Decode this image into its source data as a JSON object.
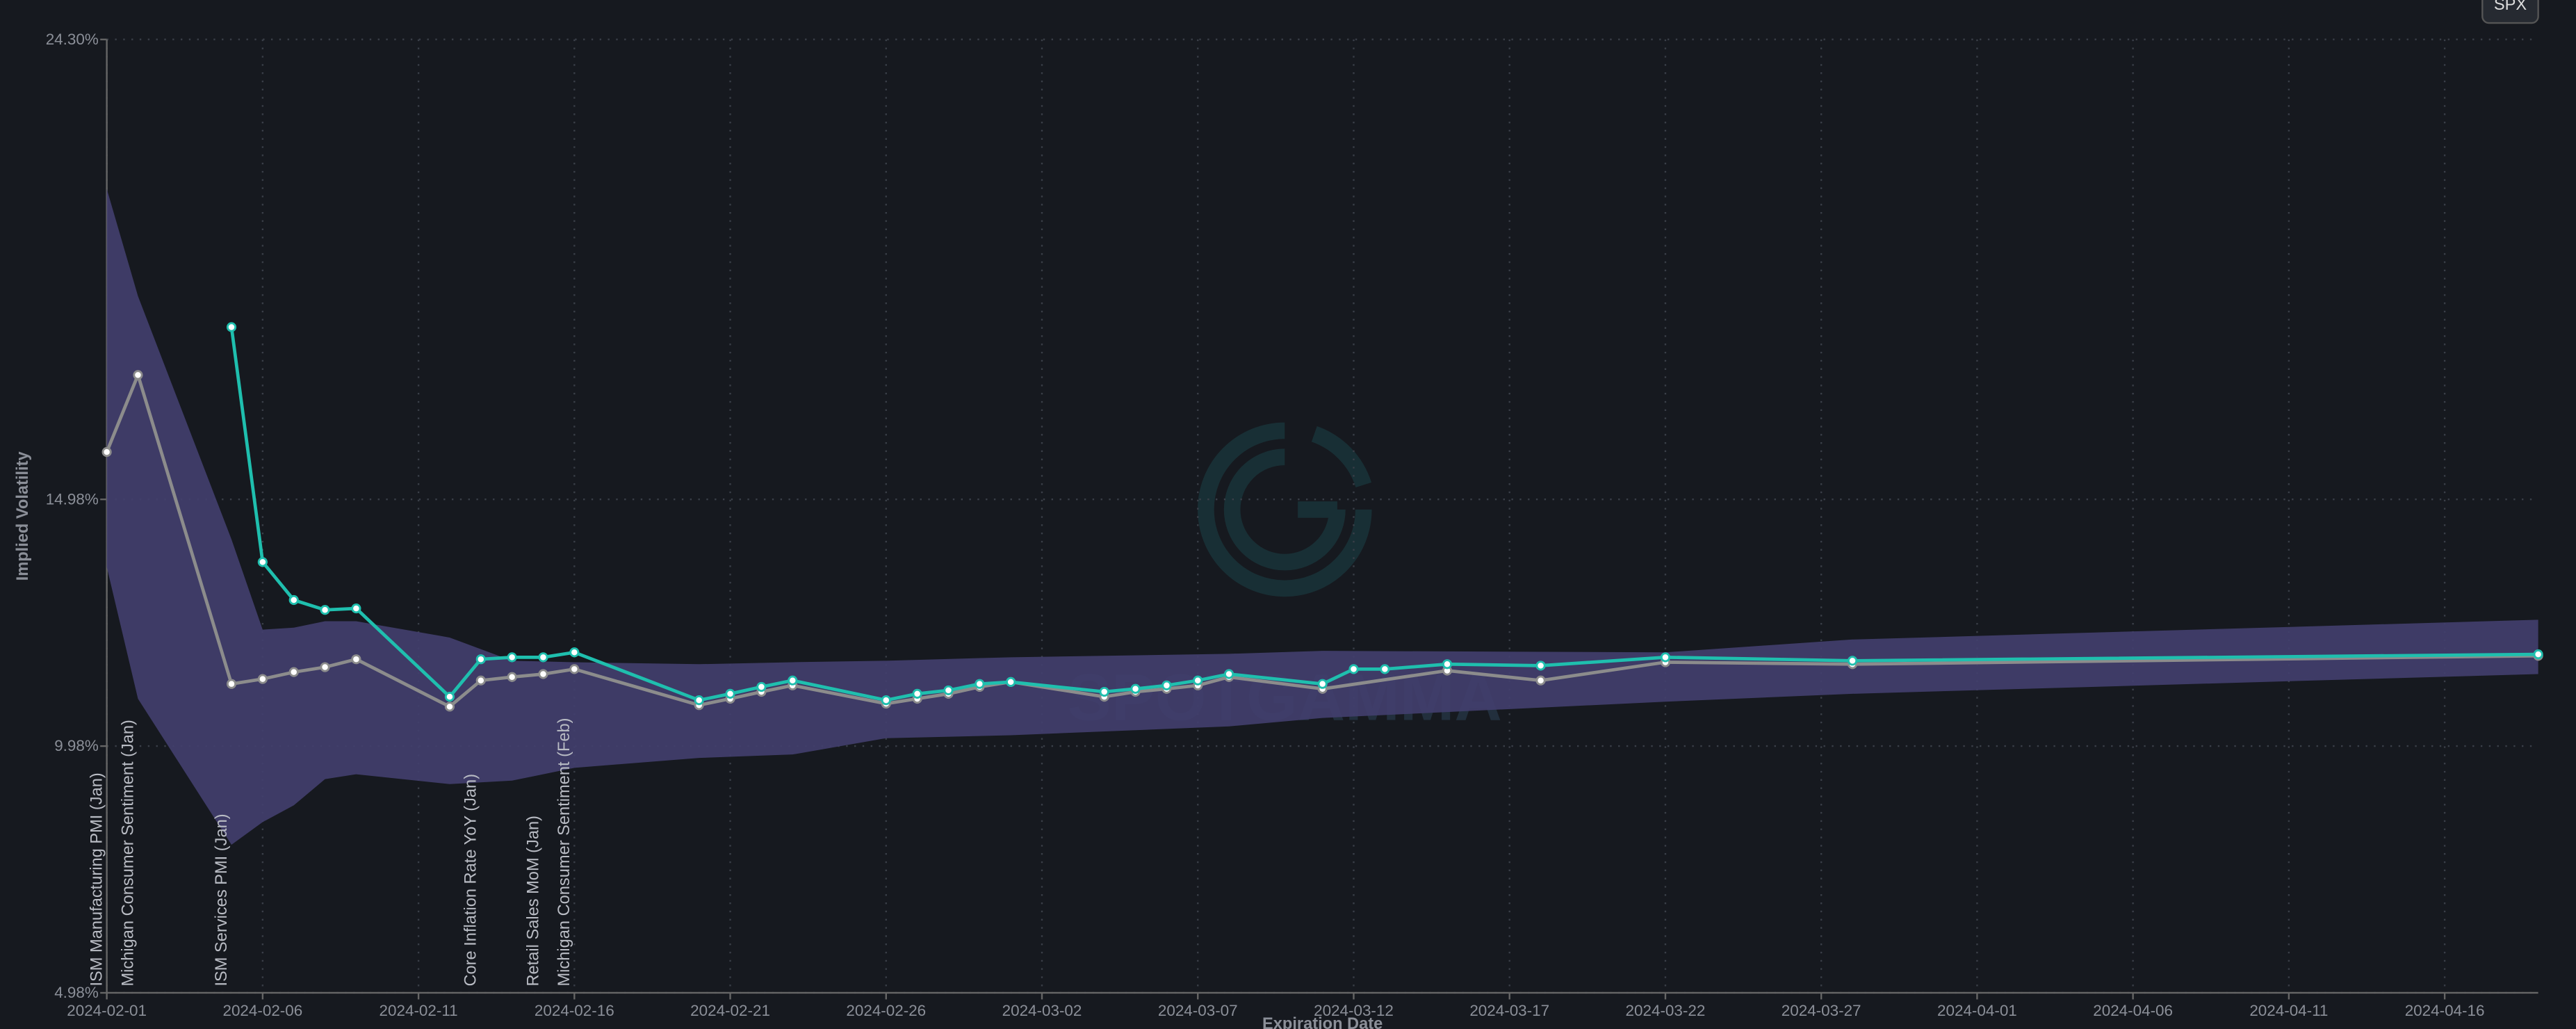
{
  "chart_data": {
    "type": "line",
    "y_label": "Implied Volatility",
    "x_label": "Expiration Date",
    "button": "SPX",
    "watermark": "SPOTGAMMA",
    "xlim": [
      "2024-02-01",
      "2024-04-19"
    ],
    "xticks": [
      "2024-02-01",
      "2024-02-06",
      "2024-02-11",
      "2024-02-16",
      "2024-02-21",
      "2024-02-26",
      "2024-03-02",
      "2024-03-07",
      "2024-03-12",
      "2024-03-17",
      "2024-03-22",
      "2024-03-27",
      "2024-04-01",
      "2024-04-06",
      "2024-04-11",
      "2024-04-16"
    ],
    "ylim": [
      4.98,
      24.3
    ],
    "yticks": [
      {
        "value": 4.98,
        "label": "4.98%"
      },
      {
        "value": 9.98,
        "label": "9.98%"
      },
      {
        "value": 14.98,
        "label": "14.98%"
      },
      {
        "value": 24.3,
        "label": "24.30%"
      }
    ],
    "grid": true,
    "band": {
      "color": "#433f6e",
      "x": [
        "2024-02-01",
        "2024-02-02",
        "2024-02-05",
        "2024-02-06",
        "2024-02-07",
        "2024-02-08",
        "2024-02-09",
        "2024-02-12",
        "2024-02-14",
        "2024-02-16",
        "2024-02-20",
        "2024-02-23",
        "2024-02-26",
        "2024-03-01",
        "2024-03-08",
        "2024-03-11",
        "2024-03-22",
        "2024-03-28",
        "2024-04-19"
      ],
      "upper": [
        21.27,
        19.1,
        14.17,
        12.34,
        12.38,
        12.51,
        12.51,
        12.18,
        11.71,
        11.68,
        11.64,
        11.68,
        11.71,
        11.78,
        11.85,
        11.91,
        11.88,
        12.14,
        12.54
      ],
      "lower": [
        13.61,
        10.94,
        7.98,
        8.44,
        8.78,
        9.31,
        9.41,
        9.21,
        9.28,
        9.54,
        9.74,
        9.81,
        10.14,
        10.2,
        10.38,
        10.55,
        10.88,
        11.04,
        11.44
      ]
    },
    "series": [
      {
        "color": "#8c8c8c",
        "x": [
          "2024-02-01",
          "2024-02-02",
          "2024-02-05",
          "2024-02-06",
          "2024-02-07",
          "2024-02-08",
          "2024-02-09",
          "2024-02-12",
          "2024-02-13",
          "2024-02-14",
          "2024-02-15",
          "2024-02-16",
          "2024-02-20",
          "2024-02-21",
          "2024-02-22",
          "2024-02-23",
          "2024-02-26",
          "2024-02-27",
          "2024-02-28",
          "2024-02-29",
          "2024-03-01",
          "2024-03-04",
          "2024-03-05",
          "2024-03-06",
          "2024-03-07",
          "2024-03-08",
          "2024-03-11",
          "2024-03-15",
          "2024-03-18",
          "2024-03-22",
          "2024-03-28",
          "2024-04-19"
        ],
        "values": [
          15.94,
          17.5,
          11.24,
          11.34,
          11.48,
          11.58,
          11.74,
          10.78,
          11.31,
          11.38,
          11.44,
          11.54,
          10.81,
          10.94,
          11.08,
          11.21,
          10.84,
          10.94,
          11.04,
          11.18,
          11.28,
          10.98,
          11.08,
          11.14,
          11.21,
          11.38,
          11.14,
          11.51,
          11.31,
          11.68,
          11.64,
          11.81
        ]
      },
      {
        "color": "#1fbfae",
        "x": [
          "2024-02-05",
          "2024-02-06",
          "2024-02-07",
          "2024-02-08",
          "2024-02-09",
          "2024-02-12",
          "2024-02-13",
          "2024-02-14",
          "2024-02-15",
          "2024-02-16",
          "2024-02-20",
          "2024-02-21",
          "2024-02-22",
          "2024-02-23",
          "2024-02-26",
          "2024-02-27",
          "2024-02-28",
          "2024-02-29",
          "2024-03-01",
          "2024-03-04",
          "2024-03-05",
          "2024-03-06",
          "2024-03-07",
          "2024-03-08",
          "2024-03-11",
          "2024-03-12",
          "2024-03-13",
          "2024-03-15",
          "2024-03-18",
          "2024-03-22",
          "2024-03-28",
          "2024-04-19"
        ],
        "values": [
          18.47,
          13.71,
          12.94,
          12.74,
          12.77,
          10.98,
          11.74,
          11.78,
          11.78,
          11.88,
          10.91,
          11.04,
          11.18,
          11.31,
          10.91,
          11.04,
          11.11,
          11.24,
          11.28,
          11.08,
          11.14,
          11.21,
          11.31,
          11.44,
          11.24,
          11.54,
          11.54,
          11.64,
          11.61,
          11.78,
          11.71,
          11.84
        ]
      }
    ],
    "events": [
      {
        "date": "2024-02-01",
        "label": "ISM Manufacturing PMI (Jan)"
      },
      {
        "date": "2024-02-02",
        "label": "Michigan Consumer Sentiment (Jan)"
      },
      {
        "date": "2024-02-05",
        "label": "ISM Services PMI (Jan)"
      },
      {
        "date": "2024-02-13",
        "label": "Core Inflation Rate YoY (Jan)"
      },
      {
        "date": "2024-02-15",
        "label": "Retail Sales MoM (Jan)"
      },
      {
        "date": "2024-02-16",
        "label": "Michigan Consumer Sentiment (Feb)"
      }
    ]
  }
}
